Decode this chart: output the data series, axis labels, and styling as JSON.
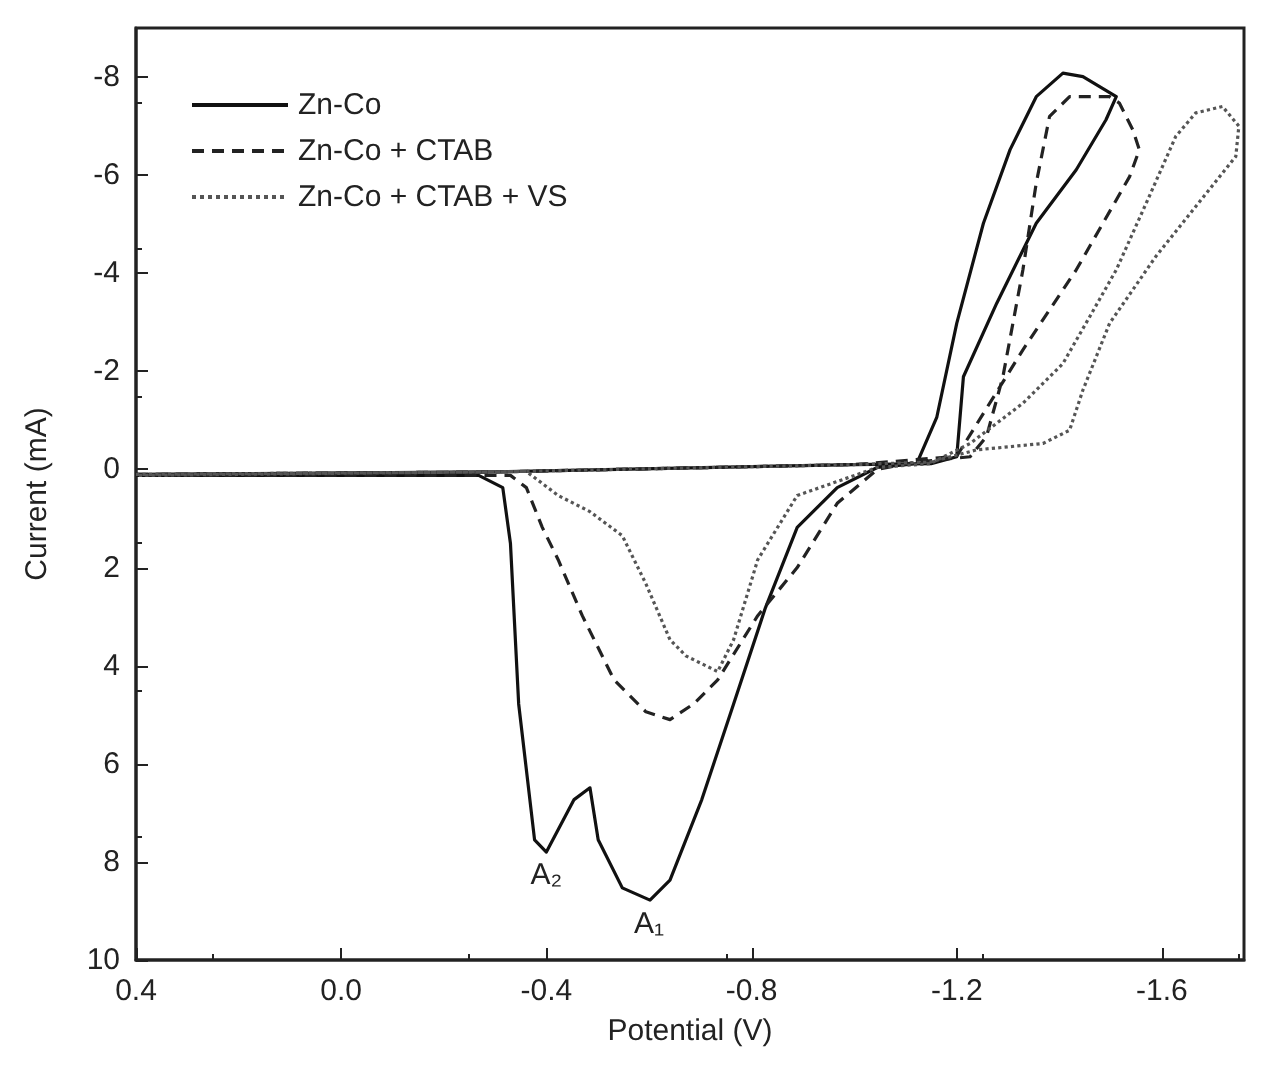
{
  "chart_data": {
    "type": "line",
    "xlabel": "Potential (V)",
    "ylabel": "Current (mA)",
    "xlim": [
      0.4,
      -1.76
    ],
    "ylim": [
      10,
      -9
    ],
    "xticks": [
      0.4,
      {
        "value": 0,
        "label": "0.0"
      },
      -0.4,
      -0.8,
      -1.2,
      -1.6
    ],
    "yticks": [
      -8,
      -6,
      -4,
      -2,
      0,
      2,
      4,
      6,
      8,
      10
    ],
    "grid": false,
    "legend": "top left",
    "annotations": [
      {
        "text": "A₂",
        "x": -0.4,
        "y": 7.8
      },
      {
        "text": "A₁",
        "x": -0.6,
        "y": 8.8
      }
    ],
    "series": [
      {
        "name": "Zn-Co",
        "color": "#111111",
        "line_style": "solid",
        "x": [
          0.4,
          -0.3,
          -1.0,
          -1.15,
          -1.2,
          -1.213,
          -1.278,
          -1.355,
          -1.433,
          -1.491,
          -1.511,
          -1.446,
          -1.407,
          -1.355,
          -1.304,
          -1.252,
          -1.2,
          -1.161,
          -1.122,
          -1.045,
          -0.967,
          -0.889,
          -0.827,
          -0.765,
          -0.703,
          -0.641,
          -0.602,
          -0.548,
          -0.501,
          -0.485,
          -0.454,
          -0.4,
          -0.377,
          -0.346,
          -0.33,
          -0.315,
          -0.268,
          0.4
        ],
        "values": [
          0.1,
          0.05,
          -0.1,
          -0.12,
          -0.26,
          -1.89,
          -3.39,
          -5.02,
          -6.11,
          -7.13,
          -7.6,
          -8.01,
          -8.08,
          -7.6,
          -6.52,
          -5.02,
          -2.98,
          -1.06,
          -0.12,
          -0.04,
          0.37,
          1.18,
          2.82,
          4.78,
          6.73,
          8.37,
          8.78,
          8.53,
          7.55,
          6.49,
          6.73,
          7.8,
          7.55,
          4.78,
          1.51,
          0.37,
          0.12,
          0.12
        ]
      },
      {
        "name": "Zn-Co + CTAB",
        "color": "#222222",
        "line_style": "dashed",
        "x": [
          0.4,
          -0.3,
          -1.0,
          -1.12,
          -1.2,
          -1.329,
          -1.433,
          -1.537,
          -1.556,
          -1.543,
          -1.517,
          -1.498,
          -1.42,
          -1.381,
          -1.355,
          -1.329,
          -1.29,
          -1.258,
          -1.226,
          -1.12,
          -1.045,
          -0.967,
          -0.889,
          -0.812,
          -0.734,
          -0.687,
          -0.641,
          -0.594,
          -0.532,
          -0.47,
          -0.423,
          -0.392,
          -0.361,
          -0.33,
          0.4
        ],
        "values": [
          0.1,
          0.05,
          -0.1,
          -0.2,
          -0.27,
          -2.44,
          -4.07,
          -5.97,
          -6.52,
          -6.93,
          -7.47,
          -7.6,
          -7.6,
          -7.2,
          -5.84,
          -4.07,
          -1.89,
          -0.67,
          -0.26,
          -0.15,
          0.0,
          0.69,
          2.0,
          2.98,
          4.29,
          4.78,
          5.1,
          4.94,
          4.29,
          2.98,
          1.84,
          1.18,
          0.37,
          0.12,
          0.12
        ]
      },
      {
        "name": "Zn-Co + CTAB + VS",
        "color": "#555555",
        "line_style": "dotted",
        "x": [
          0.4,
          -0.3,
          -1.0,
          -1.148,
          -1.239,
          -1.368,
          -1.42,
          -1.446,
          -1.498,
          -1.588,
          -1.692,
          -1.744,
          -1.75,
          -1.718,
          -1.666,
          -1.627,
          -1.575,
          -1.511,
          -1.459,
          -1.407,
          -1.329,
          -1.226,
          -1.148,
          -1.045,
          -0.889,
          -0.812,
          -0.765,
          -0.734,
          -0.672,
          -0.641,
          -0.594,
          -0.548,
          -0.485,
          -0.423,
          -0.361,
          0.4
        ],
        "values": [
          0.1,
          0.05,
          -0.1,
          -0.15,
          -0.4,
          -0.53,
          -0.8,
          -1.62,
          -2.98,
          -4.34,
          -5.7,
          -6.38,
          -7.0,
          -7.4,
          -7.27,
          -6.79,
          -5.56,
          -4.07,
          -3.11,
          -2.16,
          -1.35,
          -0.53,
          -0.12,
          -0.04,
          0.53,
          1.84,
          3.47,
          4.12,
          3.8,
          3.47,
          2.33,
          1.35,
          0.86,
          0.53,
          0.04,
          0.12
        ]
      }
    ]
  }
}
